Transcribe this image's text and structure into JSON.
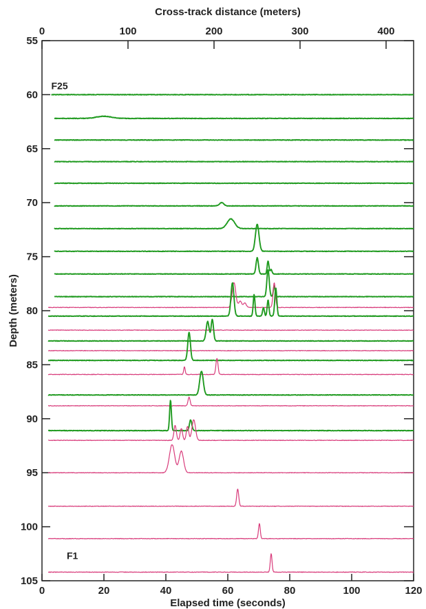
{
  "chart_data": {
    "type": "line",
    "title": "",
    "xlabel": "Elapsed time (seconds)",
    "x2label": "Cross-track distance (meters)",
    "ylabel": "Depth (meters)",
    "xlim": [
      0,
      120
    ],
    "x2lim": [
      0,
      432
    ],
    "ylim": [
      105,
      55
    ],
    "y_inverted": true,
    "grid": false,
    "xticks": [
      0,
      20,
      40,
      60,
      80,
      100,
      120
    ],
    "x2ticks": [
      0,
      100,
      200,
      300,
      400
    ],
    "yticks": [
      55,
      60,
      65,
      70,
      75,
      80,
      85,
      90,
      95,
      100,
      105
    ],
    "trace_labels": [
      {
        "text": "F25",
        "x": 3,
        "y": 59.5
      },
      {
        "text": "F1",
        "x": 8,
        "y": 103
      }
    ],
    "colors": {
      "green": "#1f9a1f",
      "magenta": "#d83a7a"
    },
    "series": [
      {
        "color": "green",
        "depth": 60.0,
        "x_start": 3,
        "peaks": []
      },
      {
        "color": "green",
        "depth": 62.2,
        "x_start": 4,
        "peaks": [
          {
            "x": 20,
            "height": 0.2,
            "width": 5
          }
        ]
      },
      {
        "color": "green",
        "depth": 64.2,
        "x_start": 4,
        "peaks": []
      },
      {
        "color": "green",
        "depth": 66.2,
        "x_start": 4,
        "peaks": []
      },
      {
        "color": "green",
        "depth": 68.2,
        "x_start": 4,
        "peaks": []
      },
      {
        "color": "green",
        "depth": 70.3,
        "x_start": 4,
        "peaks": [
          {
            "x": 58,
            "height": 0.3,
            "width": 1.5
          }
        ]
      },
      {
        "color": "green",
        "depth": 72.4,
        "x_start": 4,
        "peaks": [
          {
            "x": 61,
            "height": 0.9,
            "width": 2.5
          }
        ]
      },
      {
        "color": "green",
        "depth": 74.5,
        "x_start": 4,
        "peaks": [
          {
            "x": 69.5,
            "height": 2.5,
            "width": 1.2
          }
        ]
      },
      {
        "color": "green",
        "depth": 76.6,
        "x_start": 4,
        "peaks": [
          {
            "x": 69.5,
            "height": 1.5,
            "width": 0.8
          },
          {
            "x": 73,
            "height": 1.2,
            "width": 0.6
          },
          {
            "x": 74,
            "height": 0.4,
            "width": 0.6
          }
        ]
      },
      {
        "color": "green",
        "depth": 78.7,
        "x_start": 4,
        "peaks": [
          {
            "x": 73,
            "height": 2.5,
            "width": 0.8
          },
          {
            "x": 75,
            "height": 1.0,
            "width": 0.6
          }
        ]
      },
      {
        "color": "magenta",
        "depth": 79.7,
        "x_start": 2,
        "peaks": [
          {
            "x": 62,
            "height": 2.3,
            "width": 1.2
          },
          {
            "x": 64,
            "height": 0.6,
            "width": 1.0
          },
          {
            "x": 65.5,
            "height": 0.4,
            "width": 1.0
          },
          {
            "x": 75,
            "height": 2.3,
            "width": 0.8
          }
        ]
      },
      {
        "color": "green",
        "depth": 80.5,
        "x_start": 2,
        "peaks": [
          {
            "x": 61.5,
            "height": 3.1,
            "width": 1.0
          },
          {
            "x": 68.5,
            "height": 2.0,
            "width": 0.6
          },
          {
            "x": 71.5,
            "height": 0.8,
            "width": 0.6
          },
          {
            "x": 73,
            "height": 1.5,
            "width": 0.6
          },
          {
            "x": 75.5,
            "height": 2.6,
            "width": 0.7
          }
        ]
      },
      {
        "color": "magenta",
        "depth": 81.8,
        "x_start": 2,
        "peaks": []
      },
      {
        "color": "green",
        "depth": 82.8,
        "x_start": 2,
        "peaks": [
          {
            "x": 53.5,
            "height": 1.8,
            "width": 1.0
          },
          {
            "x": 55,
            "height": 2.0,
            "width": 0.8
          }
        ]
      },
      {
        "color": "magenta",
        "depth": 83.7,
        "x_start": 2,
        "peaks": []
      },
      {
        "color": "green",
        "depth": 84.6,
        "x_start": 2,
        "peaks": [
          {
            "x": 47.5,
            "height": 2.6,
            "width": 0.9
          }
        ]
      },
      {
        "color": "magenta",
        "depth": 85.9,
        "x_start": 2,
        "peaks": [
          {
            "x": 46,
            "height": 0.7,
            "width": 0.5
          },
          {
            "x": 56.5,
            "height": 1.5,
            "width": 0.7
          }
        ]
      },
      {
        "color": "green",
        "depth": 87.8,
        "x_start": 2,
        "peaks": [
          {
            "x": 51.5,
            "height": 2.2,
            "width": 1.2
          }
        ]
      },
      {
        "color": "magenta",
        "depth": 88.8,
        "x_start": 2,
        "peaks": [
          {
            "x": 47.5,
            "height": 0.8,
            "width": 0.7
          }
        ]
      },
      {
        "color": "green",
        "depth": 91.1,
        "x_start": 2,
        "peaks": [
          {
            "x": 41.5,
            "height": 2.8,
            "width": 0.6
          },
          {
            "x": 48,
            "height": 1.0,
            "width": 0.8
          }
        ]
      },
      {
        "color": "magenta",
        "depth": 92.0,
        "x_start": 2,
        "peaks": [
          {
            "x": 43,
            "height": 1.4,
            "width": 0.8
          },
          {
            "x": 45,
            "height": 1.1,
            "width": 0.8
          },
          {
            "x": 47,
            "height": 1.3,
            "width": 0.8
          },
          {
            "x": 49,
            "height": 1.9,
            "width": 1.2
          }
        ]
      },
      {
        "color": "magenta",
        "depth": 95.0,
        "x_start": 2,
        "peaks": [
          {
            "x": 42,
            "height": 2.6,
            "width": 1.8
          },
          {
            "x": 45,
            "height": 2.0,
            "width": 1.5
          }
        ]
      },
      {
        "color": "magenta",
        "depth": 98.1,
        "x_start": 2,
        "peaks": [
          {
            "x": 63.2,
            "height": 1.6,
            "width": 0.7
          }
        ]
      },
      {
        "color": "magenta",
        "depth": 101.1,
        "x_start": 2,
        "peaks": [
          {
            "x": 70.2,
            "height": 1.4,
            "width": 0.6
          }
        ]
      },
      {
        "color": "magenta",
        "depth": 104.2,
        "x_start": 2,
        "peaks": [
          {
            "x": 74,
            "height": 1.7,
            "width": 0.6
          }
        ]
      }
    ]
  }
}
